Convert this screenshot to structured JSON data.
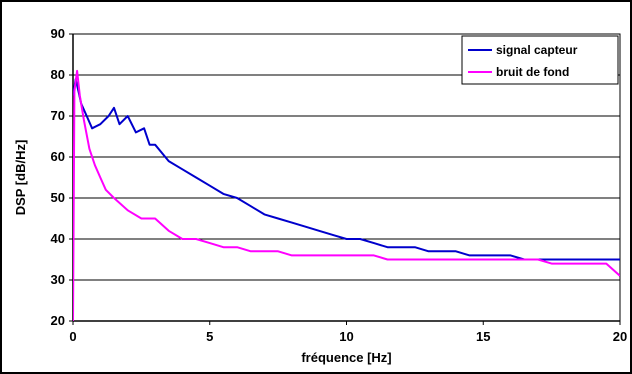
{
  "chart_data": {
    "type": "line",
    "xlabel": "fréquence  [Hz]",
    "ylabel": "DSP [dB/Hz]",
    "xlim": [
      0,
      20
    ],
    "ylim": [
      20,
      90
    ],
    "xticks": [
      0,
      5,
      10,
      15,
      20
    ],
    "yticks": [
      20,
      30,
      40,
      50,
      60,
      70,
      80,
      90
    ],
    "grid": "horizontal",
    "legend_position": "top-right",
    "series": [
      {
        "name": "signal capteur",
        "color": "#0000cc",
        "x": [
          0,
          0.1,
          0.2,
          0.3,
          0.5,
          0.7,
          1.0,
          1.3,
          1.5,
          1.7,
          2.0,
          2.3,
          2.6,
          2.8,
          3.0,
          3.5,
          4.0,
          4.5,
          5.0,
          5.5,
          6.0,
          6.5,
          7.0,
          7.5,
          8.0,
          8.5,
          9.0,
          9.5,
          10.0,
          10.5,
          11.0,
          11.5,
          12.0,
          12.5,
          13.0,
          13.5,
          14.0,
          14.5,
          15.0,
          15.5,
          16.0,
          16.5,
          17.0,
          17.5,
          18.0,
          18.5,
          19.0,
          19.5,
          20.0
        ],
        "values": [
          75,
          79,
          76,
          73,
          70,
          67,
          68,
          70,
          72,
          68,
          70,
          66,
          67,
          63,
          63,
          59,
          57,
          55,
          53,
          51,
          50,
          48,
          46,
          45,
          44,
          43,
          42,
          41,
          40,
          40,
          39,
          38,
          38,
          38,
          37,
          37,
          37,
          36,
          36,
          36,
          36,
          35,
          35,
          35,
          35,
          35,
          35,
          35,
          35
        ]
      },
      {
        "name": "bruit de fond",
        "color": "#ff00ff",
        "x": [
          0,
          0.05,
          0.15,
          0.25,
          0.4,
          0.6,
          0.8,
          1.0,
          1.2,
          1.5,
          2.0,
          2.5,
          3.0,
          3.5,
          4.0,
          4.5,
          5.0,
          5.5,
          6.0,
          6.5,
          7.0,
          7.5,
          8.0,
          8.5,
          9.0,
          9.5,
          10.0,
          10.5,
          11.0,
          11.5,
          12.0,
          12.5,
          13.0,
          13.5,
          14.0,
          14.5,
          15.0,
          15.5,
          16.0,
          16.5,
          17.0,
          17.5,
          18.0,
          18.5,
          19.0,
          19.5,
          20.0
        ],
        "values": [
          20,
          76,
          81,
          75,
          69,
          62,
          58,
          55,
          52,
          50,
          47,
          45,
          45,
          42,
          40,
          40,
          39,
          38,
          38,
          37,
          37,
          37,
          36,
          36,
          36,
          36,
          36,
          36,
          36,
          35,
          35,
          35,
          35,
          35,
          35,
          35,
          35,
          35,
          35,
          35,
          35,
          34,
          34,
          34,
          34,
          34,
          31
        ]
      }
    ]
  }
}
